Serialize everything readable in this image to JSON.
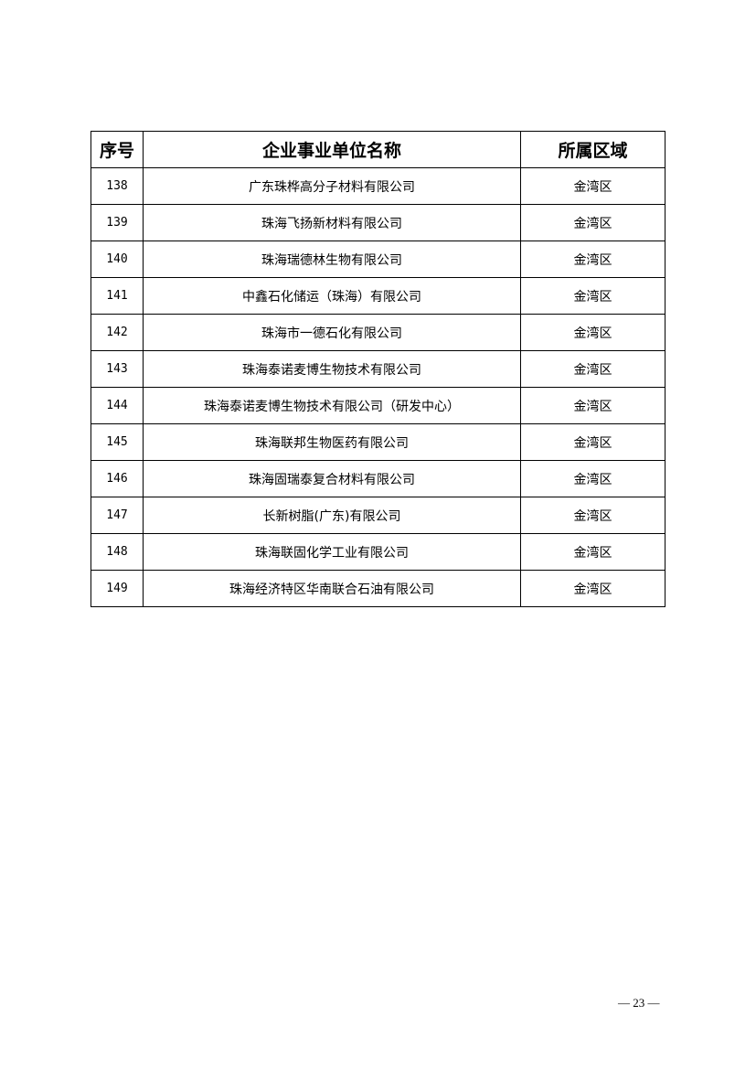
{
  "table": {
    "headers": [
      "序号",
      "企业事业单位名称",
      "所属区域"
    ],
    "rows": [
      [
        "138",
        "广东珠桦高分子材料有限公司",
        "金湾区"
      ],
      [
        "139",
        "珠海飞扬新材料有限公司",
        "金湾区"
      ],
      [
        "140",
        "珠海瑞德林生物有限公司",
        "金湾区"
      ],
      [
        "141",
        "中鑫石化储运（珠海）有限公司",
        "金湾区"
      ],
      [
        "142",
        "珠海市一德石化有限公司",
        "金湾区"
      ],
      [
        "143",
        "珠海泰诺麦博生物技术有限公司",
        "金湾区"
      ],
      [
        "144",
        "珠海泰诺麦博生物技术有限公司（研发中心）",
        "金湾区"
      ],
      [
        "145",
        "珠海联邦生物医药有限公司",
        "金湾区"
      ],
      [
        "146",
        "珠海固瑞泰复合材料有限公司",
        "金湾区"
      ],
      [
        "147",
        "长新树脂(广东)有限公司",
        "金湾区"
      ],
      [
        "148",
        "珠海联固化学工业有限公司",
        "金湾区"
      ],
      [
        "149",
        "珠海经济特区华南联合石油有限公司",
        "金湾区"
      ]
    ]
  },
  "footer": {
    "page_number": "— 23 —"
  }
}
